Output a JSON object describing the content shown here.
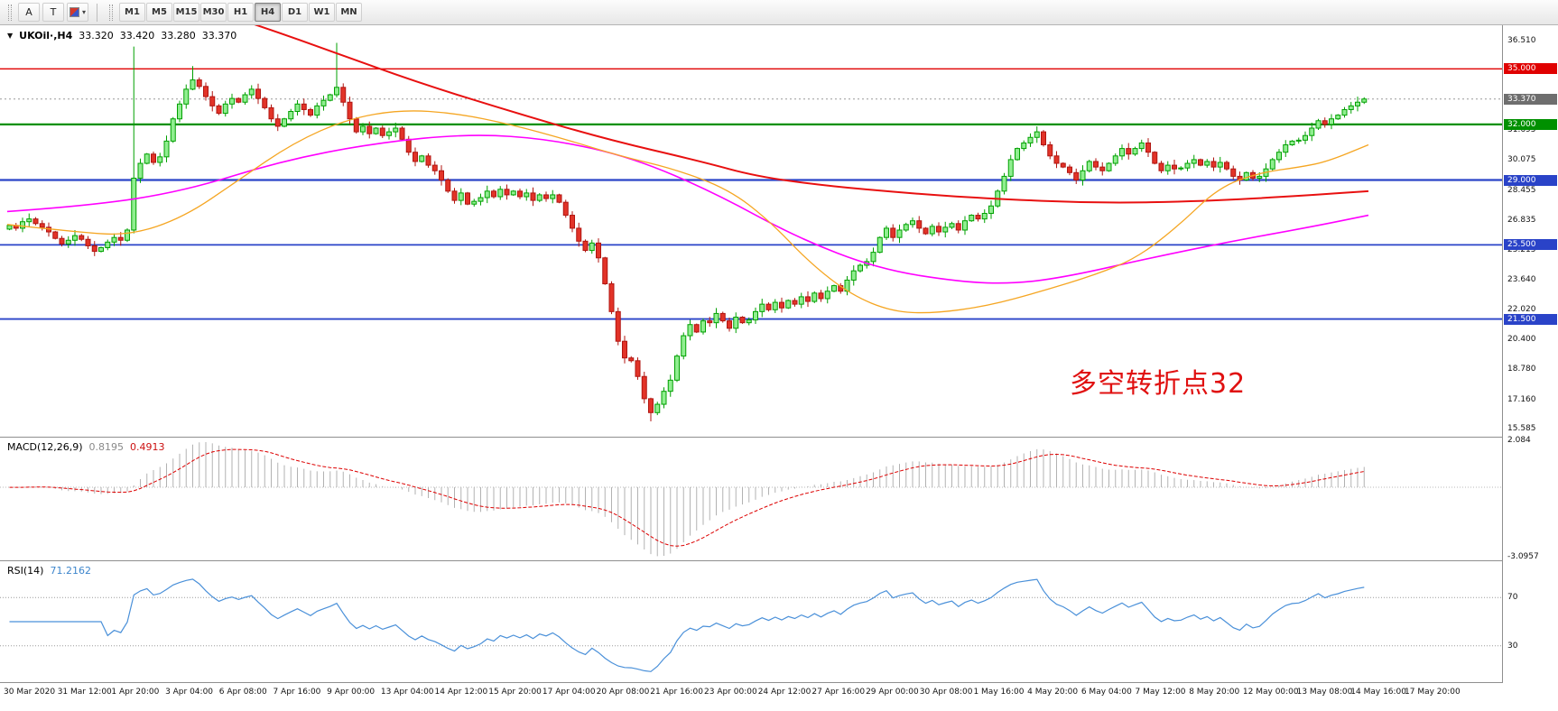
{
  "toolbar": {
    "tools": [
      {
        "label": "A",
        "name": "font-tool"
      },
      {
        "label": "T",
        "name": "text-tool"
      }
    ],
    "dropdown_caret": "▾",
    "timeframes": [
      "M1",
      "M5",
      "M15",
      "M30",
      "H1",
      "H4",
      "D1",
      "W1",
      "MN"
    ],
    "active_timeframe": "H4"
  },
  "chart_header": {
    "collapse_icon": "▼",
    "symbol_label": "UKOil·,H4",
    "open": "33.320",
    "high": "33.420",
    "low": "33.280",
    "close": "33.370"
  },
  "annotation": {
    "text": "多空转折点32",
    "color": "#e01010"
  },
  "price_axis": {
    "ticks": [
      "36.510",
      "31.695",
      "30.075",
      "28.455",
      "26.835",
      "25.215",
      "23.640",
      "22.020",
      "20.400",
      "18.780",
      "17.160",
      "15.585"
    ]
  },
  "indicators": {
    "macd": {
      "label": "MACD(12,26,9)",
      "value_main": "0.8195",
      "value_signal": "0.4913",
      "axis_max": "2.084",
      "axis_min": "-3.0957",
      "params": [
        12,
        26,
        9
      ]
    },
    "rsi": {
      "label": "RSI(14)",
      "value": "71.2162",
      "period": 14,
      "levels": [
        "70",
        "30"
      ]
    }
  },
  "time_axis": {
    "labels": [
      "30 Mar 2020",
      "31 Mar 12:00",
      "1 Apr 20:00",
      "3 Apr 04:00",
      "6 Apr 08:00",
      "7 Apr 16:00",
      "9 Apr 00:00",
      "13 Apr 04:00",
      "14 Apr 12:00",
      "15 Apr 20:00",
      "17 Apr 04:00",
      "20 Apr 08:00",
      "21 Apr 16:00",
      "23 Apr 00:00",
      "24 Apr 12:00",
      "27 Apr 16:00",
      "29 Apr 00:00",
      "30 Apr 08:00",
      "1 May 16:00",
      "4 May 20:00",
      "6 May 04:00",
      "7 May 12:00",
      "8 May 20:00",
      "12 May 00:00",
      "13 May 08:00",
      "14 May 16:00",
      "17 May 20:00"
    ]
  },
  "chart_data": {
    "type": "candlestick",
    "symbol": "UKOil",
    "timeframe": "H4",
    "price_range": {
      "max": 37.35,
      "min": 15.15
    },
    "first_open": 26.35,
    "closes": [
      26.55,
      26.4,
      26.75,
      26.9,
      26.65,
      26.45,
      26.2,
      25.85,
      25.55,
      25.75,
      26.0,
      25.8,
      25.45,
      25.15,
      25.35,
      25.65,
      25.9,
      25.75,
      26.3,
      29.1,
      29.9,
      30.4,
      29.95,
      30.25,
      31.1,
      32.3,
      33.1,
      33.9,
      34.4,
      34.05,
      33.5,
      33.0,
      32.6,
      33.1,
      33.4,
      33.2,
      33.6,
      33.9,
      33.4,
      32.9,
      32.3,
      31.9,
      32.3,
      32.7,
      33.1,
      32.8,
      32.5,
      33.0,
      33.3,
      33.6,
      34.0,
      33.2,
      32.3,
      31.6,
      31.9,
      31.5,
      31.8,
      31.4,
      31.6,
      31.8,
      31.2,
      30.5,
      30.0,
      30.3,
      29.8,
      29.5,
      29.0,
      28.4,
      27.9,
      28.3,
      27.7,
      27.85,
      28.05,
      28.4,
      28.1,
      28.5,
      28.2,
      28.4,
      28.1,
      28.3,
      27.9,
      28.2,
      28.0,
      28.2,
      27.8,
      27.1,
      26.4,
      25.7,
      25.2,
      25.6,
      24.8,
      23.4,
      21.9,
      20.3,
      19.4,
      19.25,
      18.4,
      17.2,
      16.45,
      16.9,
      17.6,
      18.2,
      19.5,
      20.6,
      21.2,
      20.8,
      21.4,
      21.3,
      21.8,
      21.4,
      21.0,
      21.6,
      21.3,
      21.45,
      21.9,
      22.3,
      22.0,
      22.4,
      22.1,
      22.5,
      22.3,
      22.7,
      22.45,
      22.9,
      22.6,
      23.0,
      23.3,
      23.0,
      23.6,
      24.1,
      24.4,
      24.6,
      25.1,
      25.9,
      26.4,
      25.9,
      26.3,
      26.6,
      26.8,
      26.4,
      26.1,
      26.5,
      26.2,
      26.45,
      26.65,
      26.3,
      26.8,
      27.1,
      26.9,
      27.2,
      27.6,
      28.4,
      29.2,
      30.1,
      30.7,
      31.0,
      31.3,
      31.6,
      30.9,
      30.3,
      29.9,
      29.7,
      29.4,
      29.0,
      29.5,
      30.0,
      29.7,
      29.5,
      29.9,
      30.3,
      30.7,
      30.4,
      30.7,
      31.0,
      30.5,
      29.9,
      29.5,
      29.8,
      29.6,
      29.65,
      29.9,
      30.1,
      29.8,
      30.0,
      29.7,
      29.95,
      29.6,
      29.2,
      29.0,
      29.4,
      29.1,
      29.2,
      29.6,
      30.1,
      30.5,
      30.9,
      31.1,
      31.15,
      31.4,
      31.8,
      32.2,
      32.0,
      32.3,
      32.5,
      32.8,
      33.0,
      33.2,
      33.37
    ],
    "wick_overrides": {
      "19": {
        "high": 36.2
      },
      "28": {
        "high": 35.15
      },
      "50": {
        "high": 36.4
      },
      "98": {
        "low": 15.98
      }
    },
    "levels": [
      {
        "price": 35.0,
        "label": "35.000",
        "color": "#e00000",
        "width": 1.4
      },
      {
        "price": 32.0,
        "label": "32.000",
        "color": "#009000",
        "width": 2.2
      },
      {
        "price": 29.0,
        "label": "29.000",
        "color": "#2a43c8",
        "width": 2.2
      },
      {
        "price": 25.5,
        "label": "25.500",
        "color": "#2a43c8",
        "width": 1.8
      },
      {
        "price": 21.5,
        "label": "21.500",
        "color": "#2a43c8",
        "width": 1.8
      }
    ],
    "current_price": {
      "price": 33.37,
      "label": "33.370",
      "badge_color": "#6e6e6e"
    },
    "ma_lines": [
      {
        "name": "ma-slow-red",
        "color": "#e81010",
        "width": 2,
        "points": [
          [
            0.08,
            40.2
          ],
          [
            0.14,
            38.4
          ],
          [
            0.19,
            37.2
          ],
          [
            0.24,
            35.9
          ],
          [
            0.3,
            34.3
          ],
          [
            0.37,
            32.7
          ],
          [
            0.44,
            31.2
          ],
          [
            0.51,
            30.0
          ],
          [
            0.55,
            29.2
          ],
          [
            0.6,
            28.7
          ],
          [
            0.66,
            28.3
          ],
          [
            0.72,
            28.0
          ],
          [
            0.8,
            27.75
          ],
          [
            0.88,
            27.85
          ],
          [
            0.95,
            28.15
          ],
          [
            1.0,
            28.4
          ]
        ]
      },
      {
        "name": "ma-mid-magenta",
        "color": "#ff00ff",
        "width": 1.6,
        "points": [
          [
            0,
            27.3
          ],
          [
            0.06,
            27.6
          ],
          [
            0.13,
            28.4
          ],
          [
            0.2,
            30.0
          ],
          [
            0.27,
            31.0
          ],
          [
            0.34,
            31.5
          ],
          [
            0.4,
            31.2
          ],
          [
            0.46,
            30.2
          ],
          [
            0.52,
            28.3
          ],
          [
            0.58,
            25.9
          ],
          [
            0.64,
            24.2
          ],
          [
            0.7,
            23.5
          ],
          [
            0.74,
            23.4
          ],
          [
            0.78,
            23.8
          ],
          [
            0.84,
            24.8
          ],
          [
            0.9,
            25.7
          ],
          [
            0.96,
            26.5
          ],
          [
            1.0,
            27.1
          ]
        ]
      },
      {
        "name": "ma-fast-orange",
        "color": "#f5a623",
        "width": 1.3,
        "points": [
          [
            0,
            26.6
          ],
          [
            0.05,
            26.2
          ],
          [
            0.09,
            26.0
          ],
          [
            0.13,
            27.0
          ],
          [
            0.17,
            29.0
          ],
          [
            0.21,
            31.0
          ],
          [
            0.25,
            32.3
          ],
          [
            0.29,
            32.8
          ],
          [
            0.33,
            32.6
          ],
          [
            0.37,
            32.0
          ],
          [
            0.41,
            31.2
          ],
          [
            0.45,
            30.3
          ],
          [
            0.49,
            29.6
          ],
          [
            0.53,
            28.5
          ],
          [
            0.56,
            26.8
          ],
          [
            0.59,
            24.5
          ],
          [
            0.62,
            22.8
          ],
          [
            0.65,
            21.9
          ],
          [
            0.68,
            21.8
          ],
          [
            0.72,
            22.2
          ],
          [
            0.76,
            23.0
          ],
          [
            0.8,
            23.9
          ],
          [
            0.83,
            24.8
          ],
          [
            0.86,
            26.5
          ],
          [
            0.89,
            28.6
          ],
          [
            0.92,
            29.4
          ],
          [
            0.95,
            29.7
          ],
          [
            0.97,
            30.0
          ],
          [
            1.0,
            30.9
          ]
        ]
      }
    ],
    "colors": {
      "bull_fill": "#90ee90",
      "bull_stroke": "#00a000",
      "bear_fill": "#e23328",
      "bear_stroke": "#b01510",
      "macd_hist": "#b2b2b2",
      "macd_signal": "#dd0000",
      "rsi_line": "#4a90d9",
      "rsi_level": "#9a9a9a"
    }
  }
}
